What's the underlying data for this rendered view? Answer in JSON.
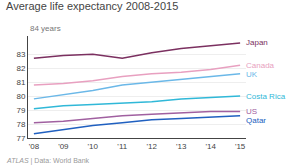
{
  "chart_data": {
    "type": "line",
    "title": "Average life expectancy 2008-2015",
    "x": [
      2008,
      2009,
      2010,
      2011,
      2012,
      2013,
      2014,
      2015
    ],
    "series": [
      {
        "name": "Japan",
        "color": "#7b3060",
        "values": [
          82.7,
          82.9,
          83.0,
          82.7,
          83.1,
          83.4,
          83.6,
          83.8
        ]
      },
      {
        "name": "Canada",
        "color": "#e8a0c0",
        "values": [
          80.8,
          80.9,
          81.1,
          81.4,
          81.6,
          81.7,
          81.9,
          82.2
        ]
      },
      {
        "name": "UK",
        "color": "#6bb8e8",
        "values": [
          79.8,
          80.1,
          80.4,
          80.8,
          81.0,
          81.2,
          81.4,
          81.6
        ]
      },
      {
        "name": "Costa Rica",
        "color": "#30b8d8",
        "values": [
          79.1,
          79.3,
          79.4,
          79.5,
          79.6,
          79.8,
          79.9,
          80.0
        ]
      },
      {
        "name": "US",
        "color": "#a060a0",
        "values": [
          78.1,
          78.2,
          78.4,
          78.6,
          78.7,
          78.8,
          78.9,
          78.9
        ]
      },
      {
        "name": "Qatar",
        "color": "#2060c0",
        "values": [
          77.3,
          77.6,
          77.9,
          78.1,
          78.3,
          78.4,
          78.5,
          78.6
        ]
      }
    ],
    "xlim": [
      2007.8,
      2015.2
    ],
    "xticks": [
      {
        "value": 2008,
        "label": "'08"
      },
      {
        "value": 2009,
        "label": "'09"
      },
      {
        "value": 2010,
        "label": "'10"
      },
      {
        "value": 2011,
        "label": "'11"
      },
      {
        "value": 2012,
        "label": "'12"
      },
      {
        "value": 2013,
        "label": "'13"
      },
      {
        "value": 2014,
        "label": "'14"
      },
      {
        "value": 2015,
        "label": "'15"
      }
    ],
    "ylim": [
      77,
      84.3
    ],
    "yticks": [
      77,
      78,
      79,
      80,
      81,
      82,
      83
    ],
    "grid": true,
    "annotations": [
      "84 years",
      "ATLAS",
      "| Data: World Bank"
    ]
  }
}
